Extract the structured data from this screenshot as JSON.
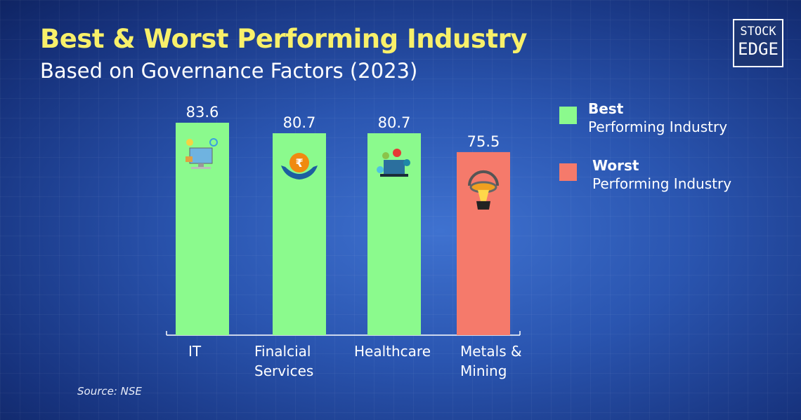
{
  "title": "Best & Worst Performing Industry",
  "subtitle": "Based on Governance Factors (2023)",
  "logo": "STOCK EDGE",
  "source": "Source: NSE",
  "chart_data": {
    "type": "bar",
    "categories": [
      "IT",
      "Finalcial Services",
      "Healthcare",
      "Metals & Mining"
    ],
    "category_lines": [
      [
        "IT"
      ],
      [
        "Finalcial",
        "Services"
      ],
      [
        "Healthcare"
      ],
      [
        "Metals &",
        "Mining"
      ]
    ],
    "values": [
      83.6,
      80.7,
      80.7,
      75.5
    ],
    "value_labels": [
      "83.6",
      "80.7",
      "80.7",
      "75.5"
    ],
    "bar_classes": [
      "best",
      "best",
      "best",
      "worst"
    ],
    "icons": [
      "computer-icon",
      "rupee-hands-icon",
      "healthcare-laptop-icon",
      "molten-metal-ladle-icon"
    ],
    "colors": {
      "best": "#8bfa8d",
      "worst": "#f57a6b"
    },
    "legend": [
      {
        "key": "best",
        "bold": "Best",
        "text": "Performing Industry"
      },
      {
        "key": "worst",
        "bold": "Worst",
        "text": "Performing Industry"
      }
    ],
    "legend_placement": "right",
    "grid": false
  }
}
